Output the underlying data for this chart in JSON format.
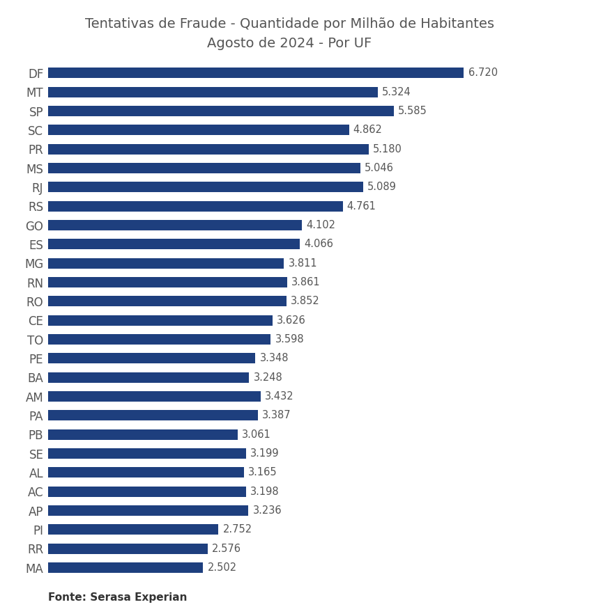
{
  "title": "Tentativas de Fraude - Quantidade por Milhão de Habitantes\nAgosto de 2024 - Por UF",
  "source": "Fonte: Serasa Experian",
  "bar_color": "#1e3f7e",
  "background_color": "#ffffff",
  "categories": [
    "DF",
    "MT",
    "SP",
    "SC",
    "PR",
    "MS",
    "RJ",
    "RS",
    "GO",
    "ES",
    "MG",
    "RN",
    "RO",
    "CE",
    "TO",
    "PE",
    "BA",
    "AM",
    "PA",
    "PB",
    "SE",
    "AL",
    "AC",
    "AP",
    "PI",
    "RR",
    "MA"
  ],
  "values": [
    6.72,
    5.324,
    5.585,
    4.862,
    5.18,
    5.046,
    5.089,
    4.761,
    4.102,
    4.066,
    3.811,
    3.861,
    3.852,
    3.626,
    3.598,
    3.348,
    3.248,
    3.432,
    3.387,
    3.061,
    3.199,
    3.165,
    3.198,
    3.236,
    2.752,
    2.576,
    2.502
  ],
  "xlim": [
    0,
    7.8
  ],
  "title_fontsize": 14,
  "label_fontsize": 12,
  "value_fontsize": 10.5,
  "source_fontsize": 11,
  "bar_height": 0.55
}
